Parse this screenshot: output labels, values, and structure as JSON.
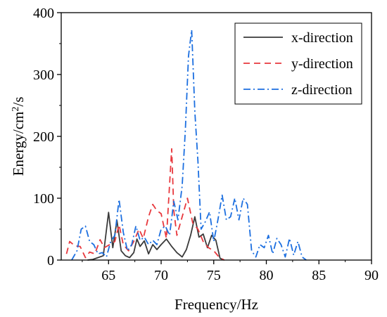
{
  "chart_data": {
    "type": "line",
    "xlabel": "Frequency/Hz",
    "ylabel": {
      "prefix": "Energy/cm",
      "sup": "2",
      "suffix": "/s"
    },
    "xlim": [
      60.5,
      90
    ],
    "ylim": [
      0,
      400
    ],
    "xticks": [
      65,
      70,
      75,
      80,
      85,
      90
    ],
    "yticks": [
      0,
      100,
      200,
      300,
      400
    ],
    "legend_position": "top-right",
    "series": [
      {
        "name": "x-direction",
        "color": "#3a3a3a",
        "dash": "solid",
        "points": [
          [
            63.0,
            0
          ],
          [
            63.5,
            1
          ],
          [
            64.0,
            4
          ],
          [
            64.5,
            7
          ],
          [
            65.0,
            77
          ],
          [
            65.4,
            20
          ],
          [
            65.8,
            64
          ],
          [
            66.2,
            15
          ],
          [
            66.6,
            7
          ],
          [
            67.0,
            4
          ],
          [
            67.4,
            12
          ],
          [
            67.7,
            34
          ],
          [
            68.0,
            22
          ],
          [
            68.4,
            31
          ],
          [
            68.8,
            10
          ],
          [
            69.2,
            25
          ],
          [
            69.6,
            17
          ],
          [
            70.0,
            25
          ],
          [
            70.5,
            34
          ],
          [
            71.0,
            22
          ],
          [
            71.5,
            12
          ],
          [
            72.0,
            5
          ],
          [
            72.4,
            17
          ],
          [
            72.8,
            40
          ],
          [
            73.2,
            70
          ],
          [
            73.6,
            37
          ],
          [
            74.0,
            42
          ],
          [
            74.4,
            20
          ],
          [
            74.8,
            40
          ],
          [
            75.2,
            32
          ],
          [
            75.6,
            3
          ],
          [
            76.0,
            0
          ]
        ]
      },
      {
        "name": "y-direction",
        "color": "#e8383d",
        "dash": "dashed",
        "points": [
          [
            61.0,
            10
          ],
          [
            61.3,
            30
          ],
          [
            61.8,
            23
          ],
          [
            62.3,
            22
          ],
          [
            62.8,
            4
          ],
          [
            63.2,
            13
          ],
          [
            63.7,
            10
          ],
          [
            64.2,
            33
          ],
          [
            64.6,
            20
          ],
          [
            65.0,
            24
          ],
          [
            65.6,
            30
          ],
          [
            66.0,
            57
          ],
          [
            66.4,
            25
          ],
          [
            66.9,
            15
          ],
          [
            67.4,
            30
          ],
          [
            67.9,
            50
          ],
          [
            68.3,
            35
          ],
          [
            68.8,
            70
          ],
          [
            69.2,
            90
          ],
          [
            69.6,
            80
          ],
          [
            70.0,
            75
          ],
          [
            70.5,
            35
          ],
          [
            71.0,
            180
          ],
          [
            71.2,
            80
          ],
          [
            71.5,
            40
          ],
          [
            72.0,
            70
          ],
          [
            72.5,
            100
          ],
          [
            73.0,
            60
          ],
          [
            73.5,
            50
          ],
          [
            74.0,
            30
          ],
          [
            74.5,
            20
          ],
          [
            75.0,
            15
          ],
          [
            75.5,
            5
          ],
          [
            76.0,
            0
          ]
        ]
      },
      {
        "name": "z-direction",
        "color": "#1c6fe0",
        "dash": "dashdot",
        "points": [
          [
            61.5,
            0
          ],
          [
            62.0,
            15
          ],
          [
            62.4,
            50
          ],
          [
            62.8,
            55
          ],
          [
            63.2,
            30
          ],
          [
            63.6,
            25
          ],
          [
            64.0,
            10
          ],
          [
            64.4,
            12
          ],
          [
            64.8,
            5
          ],
          [
            65.2,
            30
          ],
          [
            65.6,
            40
          ],
          [
            66.0,
            98
          ],
          [
            66.4,
            45
          ],
          [
            66.8,
            15
          ],
          [
            67.2,
            25
          ],
          [
            67.6,
            55
          ],
          [
            68.0,
            32
          ],
          [
            68.4,
            37
          ],
          [
            68.8,
            25
          ],
          [
            69.2,
            32
          ],
          [
            69.6,
            25
          ],
          [
            70.0,
            50
          ],
          [
            70.4,
            55
          ],
          [
            70.8,
            40
          ],
          [
            71.2,
            95
          ],
          [
            71.6,
            65
          ],
          [
            72.0,
            120
          ],
          [
            72.3,
            210
          ],
          [
            72.6,
            330
          ],
          [
            72.9,
            372
          ],
          [
            73.2,
            240
          ],
          [
            73.5,
            160
          ],
          [
            73.8,
            50
          ],
          [
            74.2,
            62
          ],
          [
            74.6,
            78
          ],
          [
            75.0,
            30
          ],
          [
            75.4,
            65
          ],
          [
            75.8,
            105
          ],
          [
            76.2,
            65
          ],
          [
            76.6,
            70
          ],
          [
            77.0,
            100
          ],
          [
            77.4,
            65
          ],
          [
            77.8,
            100
          ],
          [
            78.2,
            90
          ],
          [
            78.6,
            15
          ],
          [
            79.0,
            5
          ],
          [
            79.4,
            25
          ],
          [
            79.8,
            20
          ],
          [
            80.2,
            40
          ],
          [
            80.6,
            10
          ],
          [
            81.0,
            35
          ],
          [
            81.4,
            25
          ],
          [
            81.8,
            5
          ],
          [
            82.2,
            35
          ],
          [
            82.6,
            8
          ],
          [
            83.0,
            30
          ],
          [
            83.4,
            5
          ],
          [
            83.8,
            0
          ]
        ]
      }
    ]
  }
}
